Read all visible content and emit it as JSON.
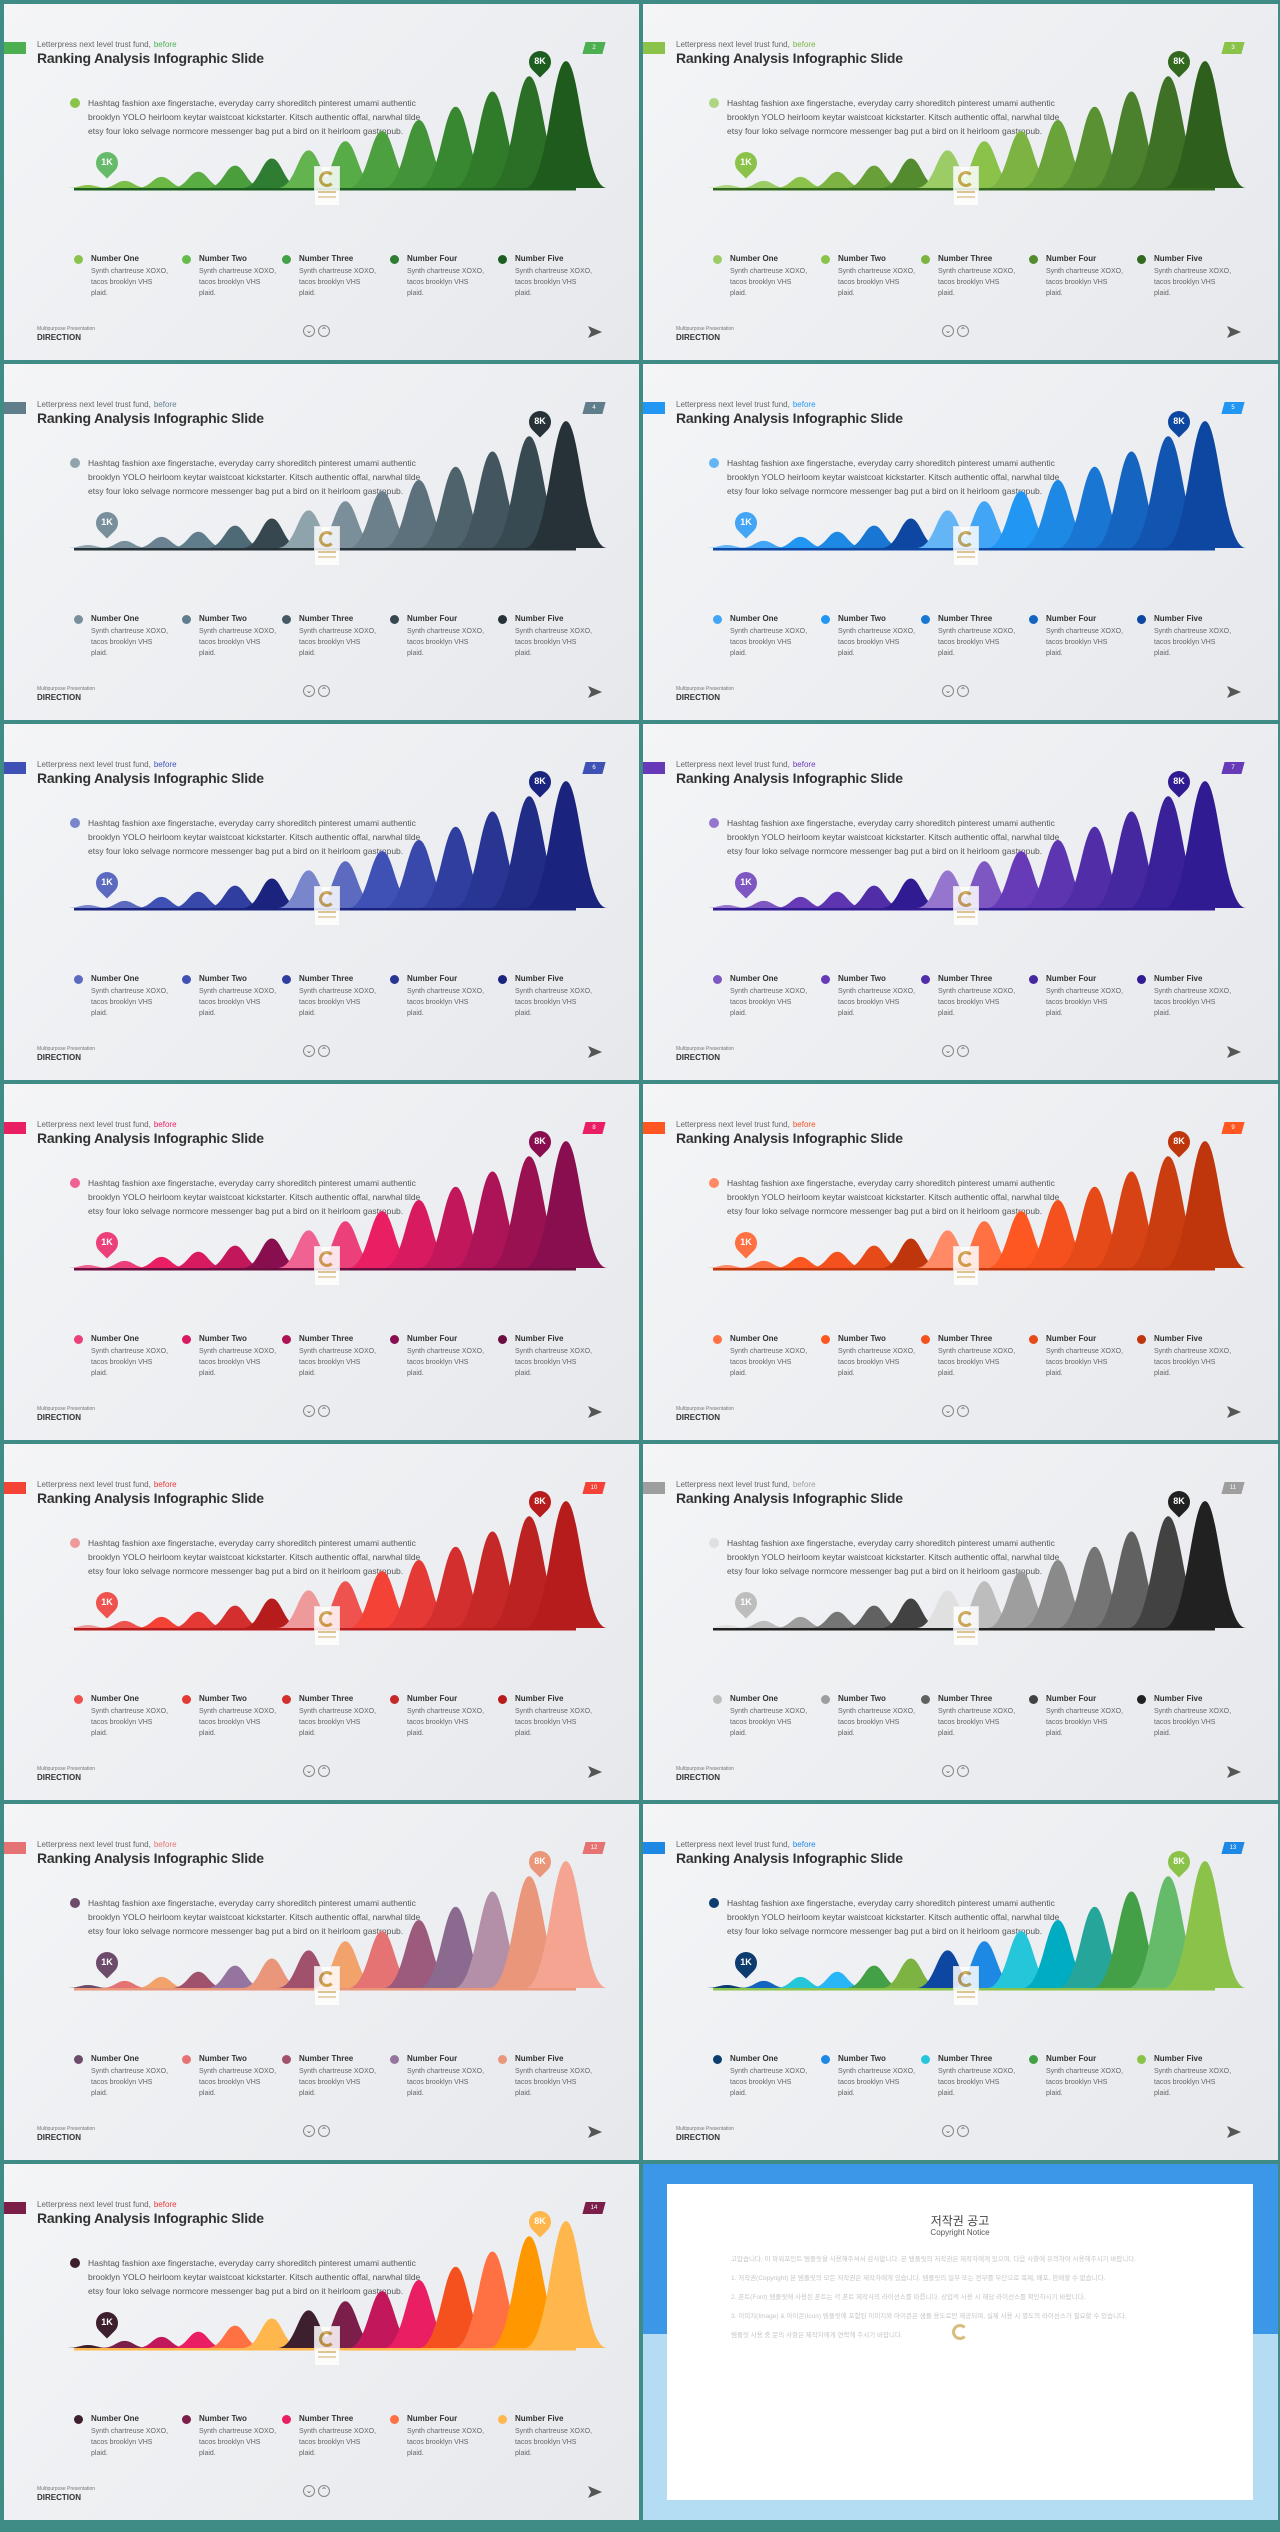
{
  "common": {
    "kicker": "Letterpress next level trust fund,",
    "kicker_highlight": "before",
    "title": "Ranking Analysis Infographic Slide",
    "description": "Hashtag fashion axe fingerstache, everyday carry shoreditch pinterest umami authentic brooklyn YOLO heirloom keytar waistcoat kickstarter. Kitsch authentic offal, narwhal tilde etsy four loko selvage normcore messenger bag put a bird on it heirloom gastropub.",
    "pin_low": "1K",
    "pin_high": "8K",
    "footer_small": "Multipurpose Presentation",
    "footer": "DIRECTION",
    "nav_up_icon": "chevron-up-icon",
    "nav_down_icon": "chevron-down-icon",
    "send_icon": "paper-plane-icon",
    "legend": [
      {
        "name": "Number One",
        "text": "Synth chartreuse XOXO, tacos brooklyn VHS plaid."
      },
      {
        "name": "Number Two",
        "text": "Synth chartreuse XOXO, tacos brooklyn VHS plaid."
      },
      {
        "name": "Number Three",
        "text": "Synth chartreuse XOXO, tacos brooklyn VHS plaid."
      },
      {
        "name": "Number Four",
        "text": "Synth chartreuse XOXO, tacos brooklyn VHS plaid."
      },
      {
        "name": "Number Five",
        "text": "Synth chartreuse XOXO, tacos brooklyn VHS plaid."
      }
    ],
    "chart_data": {
      "type": "area",
      "title": "Ranking Analysis",
      "peaks": [
        3,
        7,
        11,
        16,
        22,
        29,
        37,
        46,
        56,
        67,
        80,
        95,
        110,
        125
      ],
      "ylim": [
        0,
        130
      ],
      "labels": {
        "min": "1K",
        "max": "8K"
      }
    }
  },
  "slides": [
    {
      "page": "2",
      "hl": "#4caf50",
      "legend_colors": [
        "#8bc34a",
        "#66bb4a",
        "#43a047",
        "#2e7d32",
        "#1b5e20"
      ],
      "peaks": [
        "#8bc34a",
        "#7cbf48",
        "#6cb845",
        "#5aad42",
        "#4a9f3c",
        "#2e7d32",
        "#63b34f",
        "#57ac47",
        "#4da03f",
        "#439338",
        "#388731",
        "#2f7b2a",
        "#2a6f25",
        "#1f5b1c"
      ],
      "pin_low": "#66bb6a",
      "pin_high": "#1b5e20",
      "flag": "#4caf50",
      "tag": "#4caf50"
    },
    {
      "page": "3",
      "hl": "#7cb342",
      "legend_colors": [
        "#9ccc65",
        "#8bc34a",
        "#7cb342",
        "#558b2f",
        "#33691e"
      ],
      "peaks": [
        "#aed581",
        "#9ccc65",
        "#8bc34a",
        "#7cb342",
        "#689f38",
        "#558b2f",
        "#9ccc65",
        "#8bc34a",
        "#7cb342",
        "#6aa33a",
        "#5a9233",
        "#4b802c",
        "#3e7025",
        "#2e5f1c"
      ],
      "pin_low": "#8bc34a",
      "pin_high": "#33691e",
      "flag": "#8bc34a",
      "tag": "#8bc34a"
    },
    {
      "page": "4",
      "hl": "#607d8b",
      "legend_colors": [
        "#78909c",
        "#607d8b",
        "#455a64",
        "#37474f",
        "#263238"
      ],
      "peaks": [
        "#90a4ae",
        "#78909c",
        "#6b8390",
        "#607d8b",
        "#4f6a77",
        "#37474f",
        "#8fa3ad",
        "#7a8f9a",
        "#6b808b",
        "#5c717c",
        "#4f636d",
        "#43565f",
        "#374951",
        "#263238"
      ],
      "pin_low": "#78909c",
      "pin_high": "#263238",
      "flag": "#607d8b",
      "tag": "#607d8b"
    },
    {
      "page": "5",
      "hl": "#2196f3",
      "legend_colors": [
        "#42a5f5",
        "#2196f3",
        "#1976d2",
        "#1565c0",
        "#0d47a1"
      ],
      "peaks": [
        "#64b5f6",
        "#42a5f5",
        "#2196f3",
        "#1e88e5",
        "#1976d2",
        "#0d47a1",
        "#64b5f6",
        "#42a5f5",
        "#2196f3",
        "#1e88e5",
        "#1976d2",
        "#1565c0",
        "#1255b0",
        "#0d47a1"
      ],
      "pin_low": "#42a5f5",
      "pin_high": "#0d47a1",
      "flag": "#2196f3",
      "tag": "#2196f3"
    },
    {
      "page": "6",
      "hl": "#3f51b5",
      "legend_colors": [
        "#5c6bc0",
        "#3f51b5",
        "#303f9f",
        "#283593",
        "#1a237e"
      ],
      "peaks": [
        "#7986cb",
        "#5c6bc0",
        "#3f51b5",
        "#3949ab",
        "#303f9f",
        "#1a237e",
        "#7986cb",
        "#5c6bc0",
        "#3f51b5",
        "#3949ab",
        "#303f9f",
        "#283593",
        "#212c87",
        "#1a237e"
      ],
      "pin_low": "#5c6bc0",
      "pin_high": "#1a237e",
      "flag": "#3f51b5",
      "tag": "#3f51b5"
    },
    {
      "page": "7",
      "hl": "#673ab7",
      "legend_colors": [
        "#7e57c2",
        "#673ab7",
        "#512da8",
        "#4527a0",
        "#311b92"
      ],
      "peaks": [
        "#9575cd",
        "#7e57c2",
        "#673ab7",
        "#5e35b1",
        "#512da8",
        "#311b92",
        "#9575cd",
        "#7e57c2",
        "#673ab7",
        "#5e35b1",
        "#512da8",
        "#4527a0",
        "#3b2199",
        "#311b92"
      ],
      "pin_low": "#7e57c2",
      "pin_high": "#311b92",
      "flag": "#673ab7",
      "tag": "#673ab7"
    },
    {
      "page": "8",
      "hl": "#e91e63",
      "legend_colors": [
        "#ec407a",
        "#d81b60",
        "#ad1457",
        "#880e4f",
        "#6a0d3f"
      ],
      "peaks": [
        "#f06292",
        "#ec407a",
        "#e91e63",
        "#d81b60",
        "#c2185b",
        "#880e4f",
        "#f06292",
        "#ec407a",
        "#e91e63",
        "#d81b60",
        "#c2185b",
        "#ad1457",
        "#9a1152",
        "#880e4f"
      ],
      "pin_low": "#ec407a",
      "pin_high": "#880e4f",
      "flag": "#e91e63",
      "tag": "#e91e63"
    },
    {
      "page": "9",
      "hl": "#f4511e",
      "legend_colors": [
        "#ff7043",
        "#ff5722",
        "#f4511e",
        "#e64a19",
        "#bf360c"
      ],
      "peaks": [
        "#ff8a65",
        "#ff7043",
        "#ff5722",
        "#f4511e",
        "#e64a19",
        "#bf360c",
        "#ff8a65",
        "#ff7043",
        "#ff5722",
        "#f4511e",
        "#e64a19",
        "#d84315",
        "#c93d10",
        "#bf360c"
      ],
      "pin_low": "#ff7043",
      "pin_high": "#bf360c",
      "flag": "#ff5722",
      "tag": "#ff5722"
    },
    {
      "page": "10",
      "hl": "#e53935",
      "legend_colors": [
        "#ef5350",
        "#e53935",
        "#d32f2f",
        "#c62828",
        "#b71c1c"
      ],
      "peaks": [
        "#ef9a9a",
        "#ef5350",
        "#f44336",
        "#e53935",
        "#d32f2f",
        "#b71c1c",
        "#ef9a9a",
        "#ef5350",
        "#f44336",
        "#e53935",
        "#d32f2f",
        "#c62828",
        "#bd2222",
        "#b71c1c"
      ],
      "pin_low": "#ef5350",
      "pin_high": "#b71c1c",
      "flag": "#f44336",
      "tag": "#f44336"
    },
    {
      "page": "11",
      "hl": "#9e9e9e",
      "legend_colors": [
        "#bdbdbd",
        "#9e9e9e",
        "#616161",
        "#424242",
        "#212121"
      ],
      "peaks": [
        "#e0e0e0",
        "#bdbdbd",
        "#9e9e9e",
        "#757575",
        "#616161",
        "#424242",
        "#e0e0e0",
        "#bdbdbd",
        "#9e9e9e",
        "#8a8a8a",
        "#757575",
        "#616161",
        "#424242",
        "#212121"
      ],
      "pin_low": "#bdbdbd",
      "pin_high": "#212121",
      "flag": "#9e9e9e",
      "tag": "#9e9e9e"
    },
    {
      "page": "12",
      "hl": "#e57373",
      "legend_colors": [
        "#6d4c6b",
        "#e57373",
        "#a0526d",
        "#9575a0",
        "#e9967a"
      ],
      "peaks": [
        "#6d4c6b",
        "#e57373",
        "#f2a36c",
        "#a0526d",
        "#9575a0",
        "#e9967a",
        "#a0526d",
        "#f2a36c",
        "#e57373",
        "#9c5a7c",
        "#8b6a8f",
        "#b390a8",
        "#e9967a",
        "#f5a492"
      ],
      "pin_low": "#6d4c6b",
      "pin_high": "#e9967a",
      "flag": "#e57373",
      "tag": "#e57373"
    },
    {
      "page": "13",
      "hl": "#1e88e5",
      "legend_colors": [
        "#0d3c6e",
        "#1e88e5",
        "#26c6da",
        "#43a047",
        "#8bc34a"
      ],
      "peaks": [
        "#0d3c6e",
        "#1565c0",
        "#26c6da",
        "#29b6f6",
        "#43a047",
        "#7cb342",
        "#0d47a1",
        "#1e88e5",
        "#26c6da",
        "#00acc1",
        "#26a69a",
        "#43a047",
        "#66bb6a",
        "#8bc34a"
      ],
      "pin_low": "#0d3c6e",
      "pin_high": "#8bc34a",
      "flag": "#1e88e5",
      "tag": "#1e88e5"
    },
    {
      "page": "14",
      "hl": "#e53935",
      "legend_colors": [
        "#3e1f2e",
        "#7b1f4a",
        "#e91e63",
        "#ff7043",
        "#ffb74d"
      ],
      "peaks": [
        "#3e1f2e",
        "#7b1f4a",
        "#c2185b",
        "#e91e63",
        "#ff7043",
        "#ffb74d",
        "#3e1f2e",
        "#7b1f4a",
        "#c2185b",
        "#e91e63",
        "#f4511e",
        "#ff7043",
        "#ff9800",
        "#ffb74d"
      ],
      "pin_low": "#3e1f2e",
      "pin_high": "#ffb74d",
      "flag": "#7b1f4a",
      "tag": "#7b1f4a"
    }
  ],
  "notice": {
    "title": "저작권 공고",
    "subtitle": "Copyright Notice",
    "paragraphs": [
      "고맙습니다. 이 파워포인트 템플릿을 사용해주셔서 감사합니다. 본 템플릿의 저작권은 제작자에게 있으며, 다음 사항에 유의하여 사용해주시기 바랍니다.",
      "1. 저작권(Copyright) 본 템플릿의 모든 저작권은 제작자에게 있습니다. 템플릿의 일부 또는 전부를 무단으로 복제, 배포, 판매할 수 없습니다.",
      "2. 폰트(Font) 템플릿에 사용된 폰트는 각 폰트 제작사의 라이선스를 따릅니다. 상업적 사용 시 해당 라이선스를 확인하시기 바랍니다.",
      "3. 이미지(Image) & 아이콘(Icon) 템플릿에 포함된 이미지와 아이콘은 샘플 용도로만 제공되며, 실제 사용 시 별도의 라이선스가 필요할 수 있습니다.",
      "템플릿 사용 중 문의 사항은 제작자에게 연락해 주시기 바랍니다."
    ]
  }
}
